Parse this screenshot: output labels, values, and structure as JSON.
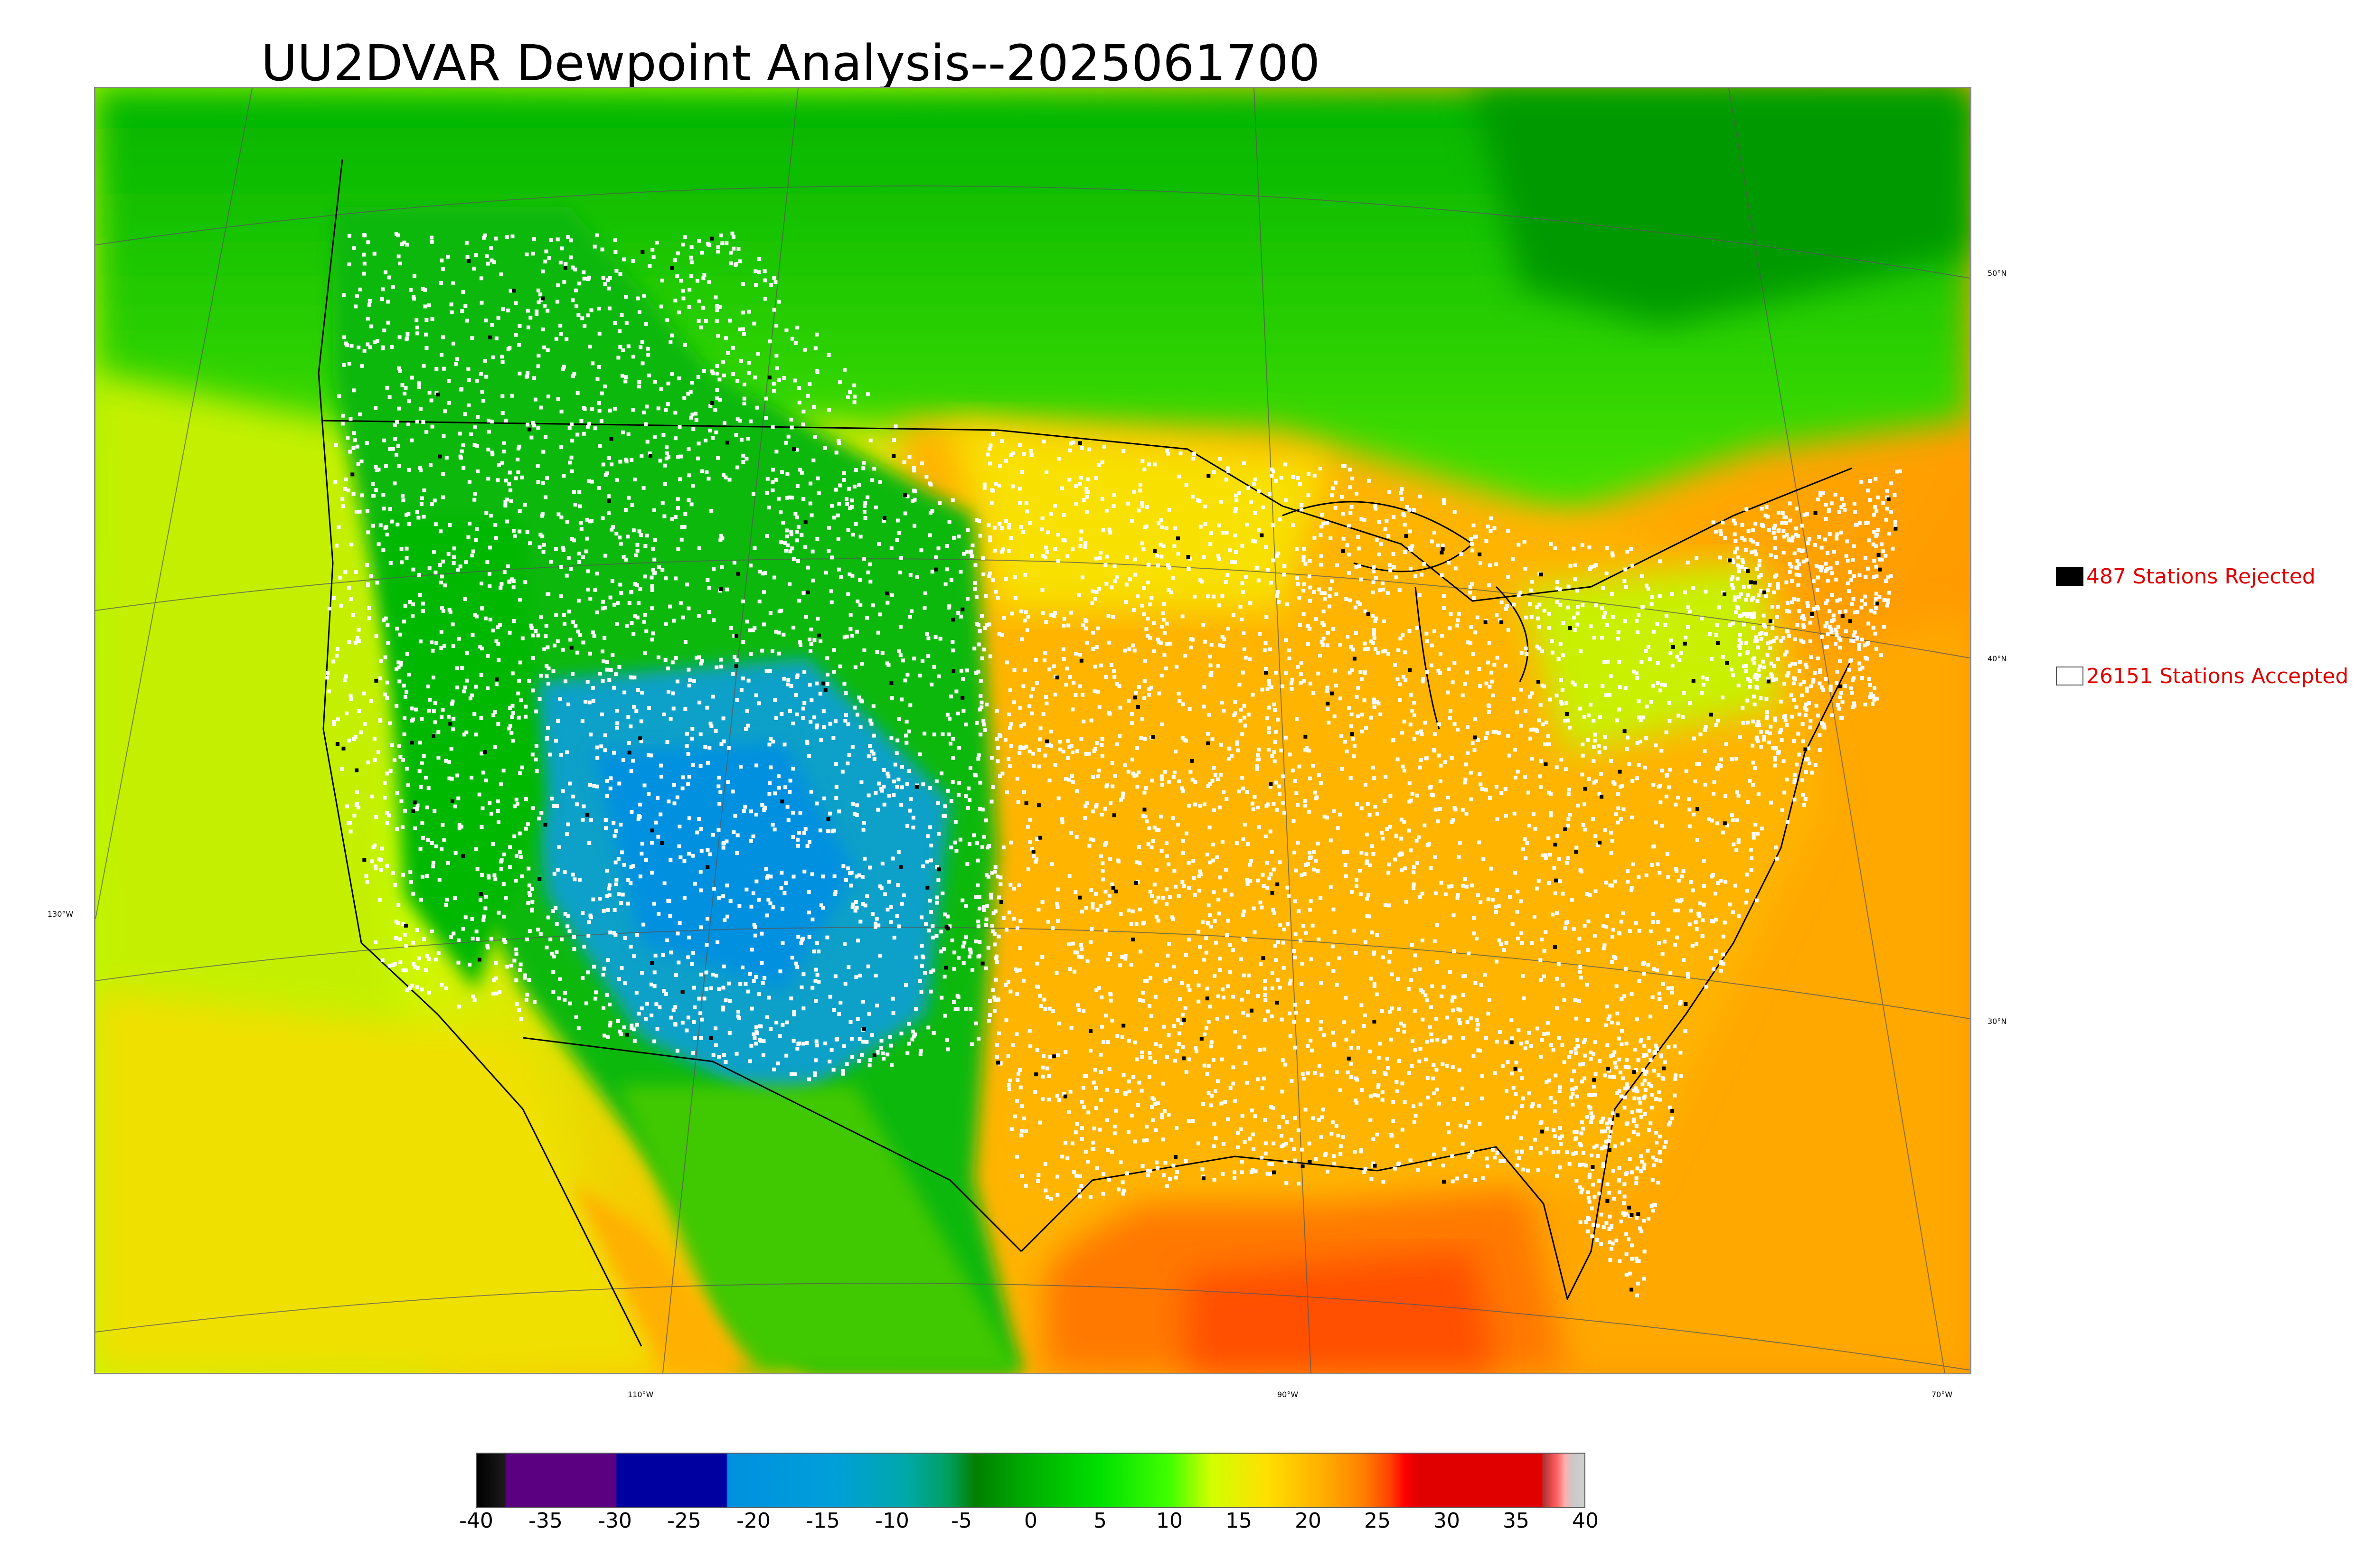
{
  "title": "UU2DVAR Dewpoint Analysis--2025061700",
  "map": {
    "latitude_labels": [
      "50°N",
      "40°N",
      "30°N"
    ],
    "longitude_labels": [
      "130°W",
      "110°W",
      "90°W",
      "70°W"
    ]
  },
  "legend": {
    "rejected_label": "487 Stations Rejected",
    "accepted_label": "26151 Stations Accepted",
    "rejected_count": 487,
    "accepted_count": 26151
  },
  "colorbar": {
    "range": [
      -40,
      40
    ],
    "tick_labels": [
      "-40",
      "-35",
      "-30",
      "-25",
      "-20",
      "-15",
      "-10",
      "-5",
      "0",
      "5",
      "10",
      "15",
      "20",
      "25",
      "30",
      "35",
      "40"
    ],
    "stops": [
      {
        "value": -40,
        "color": "#000000"
      },
      {
        "value": -38,
        "color": "#1a1a1a"
      },
      {
        "value": -37.9,
        "color": "#5a0080"
      },
      {
        "value": -30,
        "color": "#5a0080"
      },
      {
        "value": -29.9,
        "color": "#0000a0"
      },
      {
        "value": -22,
        "color": "#0000a0"
      },
      {
        "value": -21.9,
        "color": "#0090e0"
      },
      {
        "value": -14,
        "color": "#00a0d8"
      },
      {
        "value": -9,
        "color": "#00a8a8"
      },
      {
        "value": -6,
        "color": "#00a060"
      },
      {
        "value": -4,
        "color": "#008000"
      },
      {
        "value": 0,
        "color": "#00b000"
      },
      {
        "value": 5,
        "color": "#00e000"
      },
      {
        "value": 10,
        "color": "#40ff00"
      },
      {
        "value": 13,
        "color": "#d0ff00"
      },
      {
        "value": 17,
        "color": "#ffe000"
      },
      {
        "value": 21,
        "color": "#ffb000"
      },
      {
        "value": 24,
        "color": "#ff8000"
      },
      {
        "value": 26,
        "color": "#ff4000"
      },
      {
        "value": 27,
        "color": "#ff0000"
      },
      {
        "value": 28,
        "color": "#e00000"
      },
      {
        "value": 36.9,
        "color": "#e00000"
      },
      {
        "value": 37,
        "color": "#b03030"
      },
      {
        "value": 38,
        "color": "#ff6060"
      },
      {
        "value": 38.6,
        "color": "#ffb0b0"
      },
      {
        "value": 39.2,
        "color": "#c8c8c8"
      },
      {
        "value": 40,
        "color": "#d0d0d0"
      }
    ]
  },
  "colors": {
    "rejected_station": "#000000",
    "accepted_station": "#ffffff",
    "legend_text": "#e00000"
  }
}
